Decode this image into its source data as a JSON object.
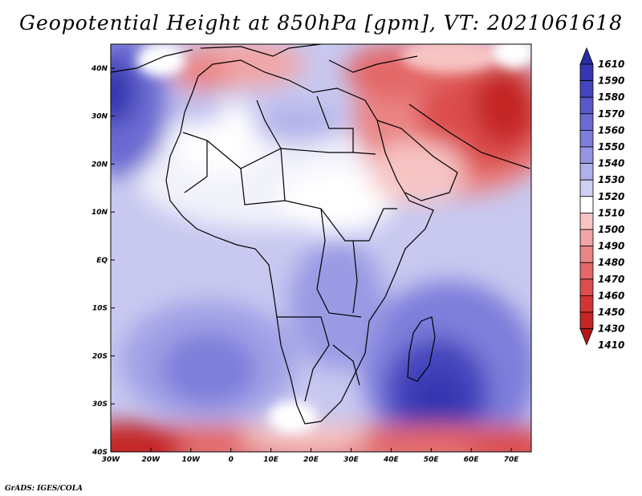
{
  "title": "Geopotential Height at 850hPa [gpm], VT: 2021061618",
  "credit": "GrADS: IGES/COLA",
  "map": {
    "lon_range": [
      -30,
      75
    ],
    "lat_range": [
      -40,
      45
    ],
    "lon_ticks": [
      {
        "value": -30,
        "label": "30W"
      },
      {
        "value": -20,
        "label": "20W"
      },
      {
        "value": -10,
        "label": "10W"
      },
      {
        "value": 0,
        "label": "0"
      },
      {
        "value": 10,
        "label": "10E"
      },
      {
        "value": 20,
        "label": "20E"
      },
      {
        "value": 30,
        "label": "30E"
      },
      {
        "value": 40,
        "label": "40E"
      },
      {
        "value": 50,
        "label": "50E"
      },
      {
        "value": 60,
        "label": "60E"
      },
      {
        "value": 70,
        "label": "70E"
      }
    ],
    "lat_ticks": [
      {
        "value": 40,
        "label": "40N"
      },
      {
        "value": 30,
        "label": "30N"
      },
      {
        "value": 20,
        "label": "20N"
      },
      {
        "value": 10,
        "label": "10N"
      },
      {
        "value": 0,
        "label": "EQ"
      },
      {
        "value": -10,
        "label": "10S"
      },
      {
        "value": -20,
        "label": "20S"
      },
      {
        "value": -30,
        "label": "30S"
      },
      {
        "value": -40,
        "label": "40S"
      }
    ]
  },
  "colorbar": {
    "top_label": "1610",
    "levels": [
      "1590",
      "1580",
      "1570",
      "1560",
      "1550",
      "1540",
      "1530",
      "1520",
      "1510",
      "1500",
      "1490",
      "1480",
      "1470",
      "1460",
      "1450",
      "1430",
      "1410"
    ],
    "colors": [
      "#2a2aa0",
      "#3535b0",
      "#4545bd",
      "#5858c8",
      "#6a6ad2",
      "#7e7edb",
      "#9595e4",
      "#b0b0ec",
      "#cfcff4",
      "#ffffff",
      "#f7c4c4",
      "#f1a5a5",
      "#ea8585",
      "#e46868",
      "#dc4d4d",
      "#d33535",
      "#c42525",
      "#b11818"
    ]
  }
}
